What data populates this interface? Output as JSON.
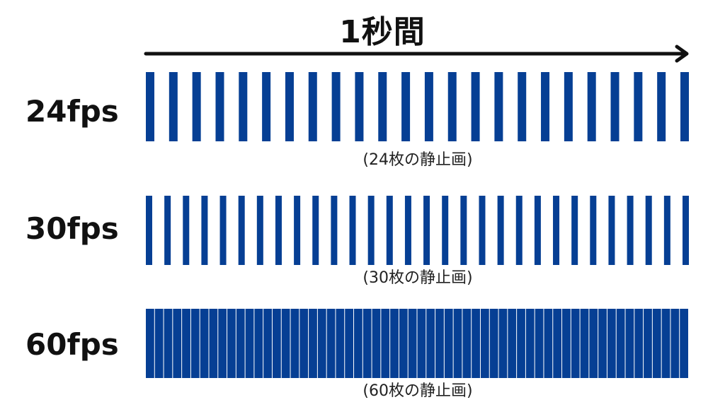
{
  "header": {
    "title": "1秒間"
  },
  "colors": {
    "frame": "#063f94",
    "arrow": "#111111"
  },
  "rows": [
    {
      "label": "24fps",
      "frame_count": 24,
      "caption": "(24枚の静止画)"
    },
    {
      "label": "30fps",
      "frame_count": 30,
      "caption": "(30枚の静止画)"
    },
    {
      "label": "60fps",
      "frame_count": 60,
      "caption": "(60枚の静止画)"
    }
  ]
}
